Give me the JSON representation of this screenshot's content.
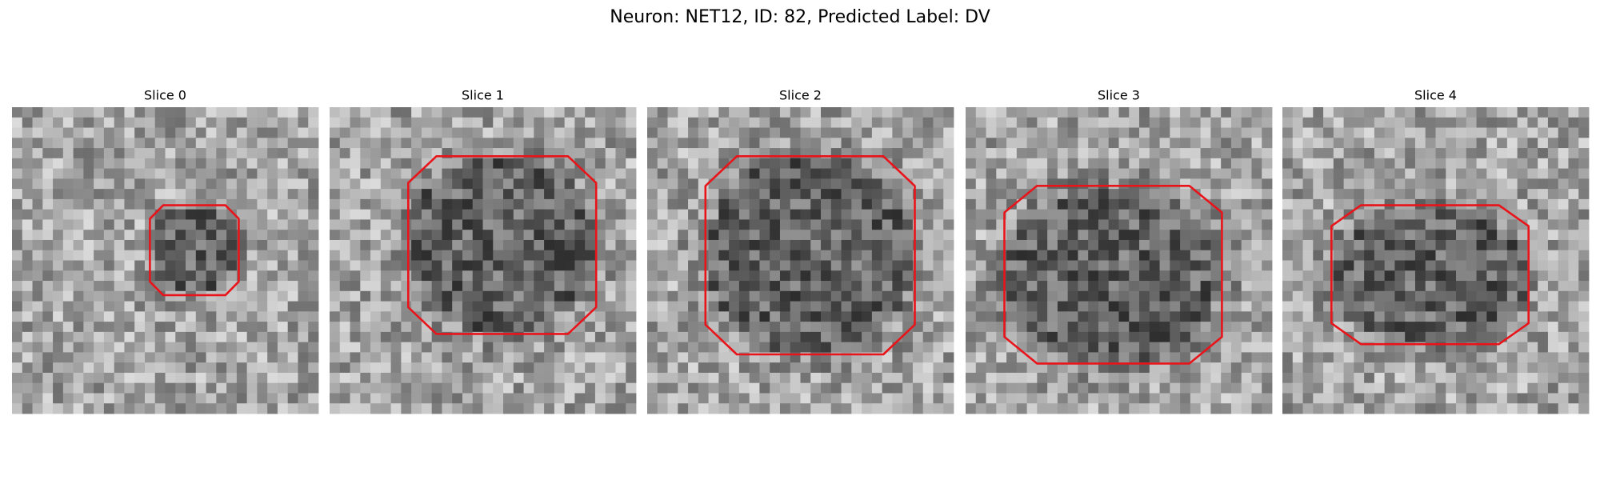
{
  "header": {
    "title": "Neuron: NET12, ID: 82, Predicted Label: DV"
  },
  "panels": [
    {
      "title": "Slice 0"
    },
    {
      "title": "Slice 1"
    },
    {
      "title": "Slice 2"
    },
    {
      "title": "Slice 3"
    },
    {
      "title": "Slice 4"
    }
  ]
}
